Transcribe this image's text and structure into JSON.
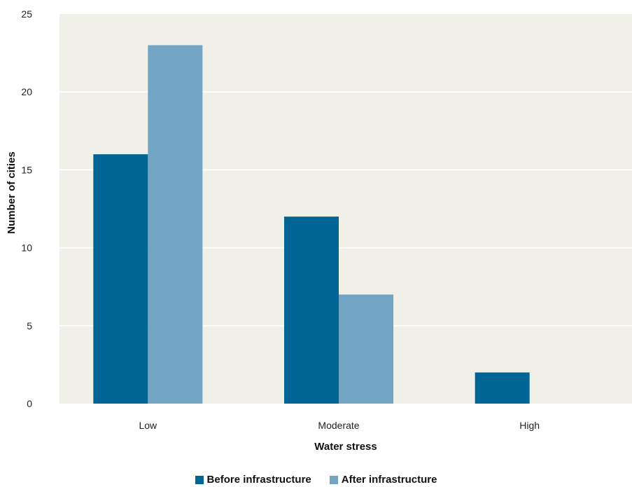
{
  "chart_data": {
    "type": "bar",
    "categories": [
      "Low",
      "Moderate",
      "High"
    ],
    "series": [
      {
        "name": "Before infrastructure",
        "values": [
          16,
          12,
          2
        ],
        "color": "#006494"
      },
      {
        "name": "After infrastructure",
        "values": [
          23,
          7,
          0
        ],
        "color": "#72a5c4"
      }
    ],
    "xlabel": "Water stress",
    "ylabel": "Number of cities",
    "ylim": [
      0,
      25
    ],
    "yticks": [
      0,
      5,
      10,
      15,
      20,
      25
    ],
    "grid": true,
    "legend_position": "bottom-center",
    "plot_background": "#f1f0e8"
  }
}
